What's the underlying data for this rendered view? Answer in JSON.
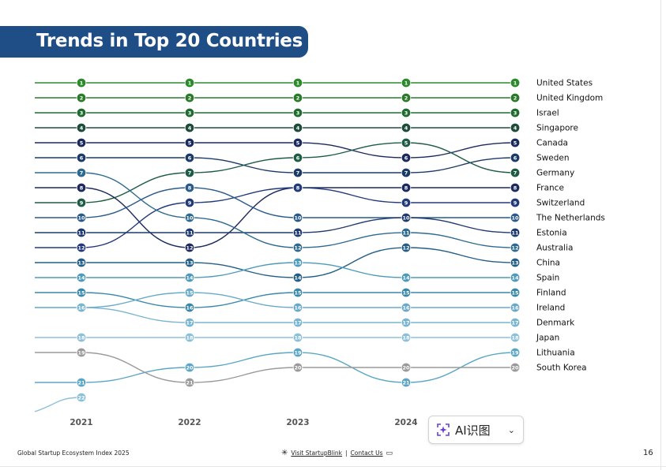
{
  "title": "Trends in Top 20 Countries",
  "chart_data": {
    "type": "line",
    "subtype": "bump",
    "title": "Trends in Top 20 Countries",
    "x": [
      "2021",
      "2022",
      "2023",
      "2024",
      "2025"
    ],
    "x_labels_shown": [
      "2021",
      "2022",
      "2023",
      "2024"
    ],
    "y_axis": "rank (1 = top)",
    "ylim": [
      1,
      22
    ],
    "series": [
      {
        "name": "United States",
        "ranks": [
          1,
          1,
          1,
          1,
          1
        ],
        "color": "#2c8a2c"
      },
      {
        "name": "United Kingdom",
        "ranks": [
          2,
          2,
          2,
          2,
          2
        ],
        "color": "#2a7a2a"
      },
      {
        "name": "Israel",
        "ranks": [
          3,
          3,
          3,
          3,
          3
        ],
        "color": "#1f6b30"
      },
      {
        "name": "Singapore",
        "ranks": [
          4,
          4,
          4,
          4,
          4
        ],
        "color": "#1d4d3a"
      },
      {
        "name": "Canada",
        "ranks": [
          5,
          5,
          5,
          6,
          5
        ],
        "color": "#1b2a5c"
      },
      {
        "name": "Sweden",
        "ranks": [
          6,
          6,
          7,
          7,
          6
        ],
        "color": "#1c3a66"
      },
      {
        "name": "Germany",
        "ranks": [
          9,
          7,
          6,
          5,
          7
        ],
        "color": "#1e5c45"
      },
      {
        "name": "France",
        "ranks": [
          8,
          12,
          8,
          8,
          8
        ],
        "color": "#1c2a5e"
      },
      {
        "name": "Switzerland",
        "ranks": [
          12,
          9,
          8,
          9,
          9
        ],
        "color": "#223a7a"
      },
      {
        "name": "The Netherlands",
        "ranks": [
          10,
          8,
          10,
          10,
          10
        ],
        "color": "#2a5a8a"
      },
      {
        "name": "Estonia",
        "ranks": [
          11,
          11,
          11,
          10,
          11
        ],
        "color": "#1e3a6e"
      },
      {
        "name": "Australia",
        "ranks": [
          7,
          10,
          12,
          11,
          12
        ],
        "color": "#2e6a90"
      },
      {
        "name": "China",
        "ranks": [
          13,
          13,
          14,
          12,
          13
        ],
        "color": "#245e86"
      },
      {
        "name": "Spain",
        "ranks": [
          14,
          14,
          13,
          14,
          14
        ],
        "color": "#4d9aba"
      },
      {
        "name": "Finland",
        "ranks": [
          15,
          16,
          15,
          15,
          15
        ],
        "color": "#3a88a8"
      },
      {
        "name": "Ireland",
        "ranks": [
          16,
          15,
          16,
          16,
          16
        ],
        "color": "#6aaac8"
      },
      {
        "name": "Denmark",
        "ranks": [
          16,
          17,
          17,
          17,
          17
        ],
        "color": "#79b5cf"
      },
      {
        "name": "Japan",
        "ranks": [
          18,
          18,
          18,
          18,
          18
        ],
        "color": "#8cc0d8"
      },
      {
        "name": "Lithuania",
        "ranks": [
          21,
          20,
          19,
          21,
          19
        ],
        "color": "#5ba6c5"
      },
      {
        "name": "South Korea",
        "ranks": [
          19,
          21,
          20,
          20,
          20
        ],
        "color": "#9a9a9a"
      }
    ],
    "extra_markers": [
      {
        "year": "2021",
        "rank": 22
      }
    ]
  },
  "footer": {
    "index_name": "Global Startup Ecosystem Index 2025",
    "visit_link": "Visit StartupBlink",
    "separator": "|",
    "contact_link": "Contact Us",
    "page_number": "16"
  },
  "ai_widget": {
    "label": "AI识图",
    "accent": "#6b3fd4"
  }
}
